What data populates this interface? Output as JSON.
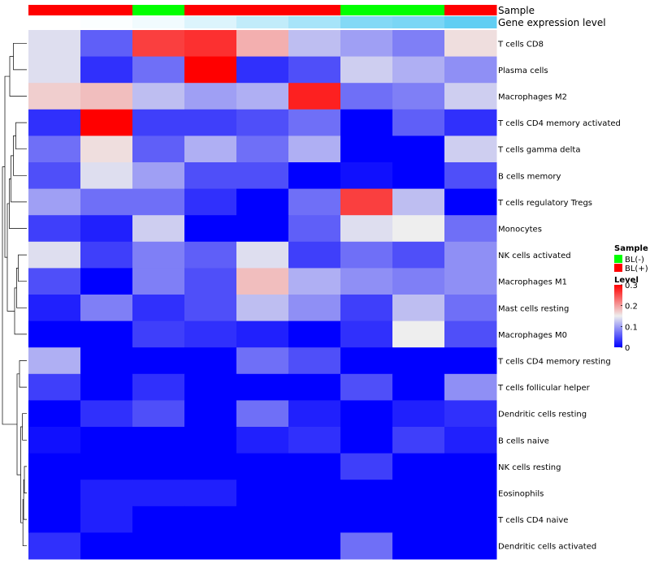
{
  "chart_data": {
    "type": "heatmap",
    "annotation_titles": {
      "sample": "Sample",
      "expression": "Gene expression level"
    },
    "sample_annotation": [
      "BL(+)",
      "BL(+)",
      "BL(-)",
      "BL(+)",
      "BL(+)",
      "BL(+)",
      "BL(-)",
      "BL(-)",
      "BL(+)"
    ],
    "expression_annotation": [
      0.0,
      0.02,
      0.08,
      0.2,
      0.35,
      0.5,
      0.7,
      0.75,
      0.9
    ],
    "rows": [
      "T cells CD8",
      "Plasma cells",
      "Macrophages M2",
      "T cells CD4 memory activated",
      "T cells gamma delta",
      "B cells memory",
      "T cells regulatory  Tregs",
      "Monocytes",
      "NK cells activated",
      "Macrophages M1",
      "Mast cells resting",
      "Macrophages M0",
      "T cells CD4 memory resting",
      "T cells follicular helper",
      "Dendritic cells resting",
      "B cells naive",
      "NK cells resting",
      "Eosinophils",
      "T cells CD4 naive",
      "Dendritic cells activated"
    ],
    "values": [
      [
        0.14,
        0.06,
        0.26,
        0.27,
        0.19,
        0.12,
        0.1,
        0.08,
        0.16
      ],
      [
        0.14,
        0.03,
        0.07,
        0.3,
        0.03,
        0.05,
        0.13,
        0.11,
        0.09
      ],
      [
        0.17,
        0.18,
        0.12,
        0.1,
        0.11,
        0.28,
        0.07,
        0.08,
        0.13
      ],
      [
        0.03,
        0.3,
        0.04,
        0.04,
        0.05,
        0.07,
        0.0,
        0.06,
        0.03
      ],
      [
        0.07,
        0.16,
        0.06,
        0.11,
        0.07,
        0.11,
        0.0,
        0.0,
        0.13
      ],
      [
        0.05,
        0.14,
        0.1,
        0.05,
        0.05,
        0.0,
        0.01,
        0.0,
        0.05
      ],
      [
        0.1,
        0.07,
        0.07,
        0.03,
        0.0,
        0.07,
        0.26,
        0.12,
        0.0
      ],
      [
        0.04,
        0.02,
        0.13,
        0.0,
        0.0,
        0.06,
        0.14,
        0.15,
        0.07
      ],
      [
        0.14,
        0.04,
        0.08,
        0.06,
        0.14,
        0.04,
        0.07,
        0.05,
        0.09
      ],
      [
        0.05,
        0.0,
        0.08,
        0.05,
        0.18,
        0.11,
        0.09,
        0.08,
        0.09
      ],
      [
        0.02,
        0.08,
        0.03,
        0.05,
        0.12,
        0.09,
        0.04,
        0.12,
        0.07
      ],
      [
        0.0,
        0.0,
        0.04,
        0.03,
        0.02,
        0.0,
        0.03,
        0.15,
        0.05
      ],
      [
        0.11,
        0.0,
        0.0,
        0.0,
        0.07,
        0.05,
        0.0,
        0.0,
        0.0
      ],
      [
        0.04,
        0.0,
        0.03,
        0.0,
        0.0,
        0.0,
        0.05,
        0.0,
        0.09
      ],
      [
        0.0,
        0.03,
        0.05,
        0.0,
        0.07,
        0.02,
        0.0,
        0.02,
        0.03
      ],
      [
        0.01,
        0.0,
        0.0,
        0.0,
        0.02,
        0.03,
        0.0,
        0.04,
        0.02
      ],
      [
        0.0,
        0.0,
        0.0,
        0.0,
        0.0,
        0.0,
        0.04,
        0.0,
        0.0
      ],
      [
        0.0,
        0.02,
        0.02,
        0.02,
        0.0,
        0.0,
        0.0,
        0.0,
        0.0
      ],
      [
        0.0,
        0.02,
        0.0,
        0.0,
        0.0,
        0.0,
        0.0,
        0.0,
        0.0
      ],
      [
        0.03,
        0.0,
        0.0,
        0.0,
        0.0,
        0.0,
        0.07,
        0.0,
        0.0
      ]
    ],
    "color_scale": {
      "min": 0,
      "mid": 0.15,
      "max": 0.3,
      "low_color": "#0000ff",
      "mid_color": "#eeeeee",
      "high_color": "#ff0000"
    },
    "legend": {
      "placement": "right",
      "sample_title": "Sample",
      "sample_entries": [
        {
          "label": "BL(-)",
          "color": "#00ff00"
        },
        {
          "label": "BL(+)",
          "color": "#ff0000"
        }
      ],
      "level_title": "Level",
      "level_ticks": [
        0,
        0.1,
        0.2,
        0.3
      ],
      "level_tick_labels": [
        "0",
        "0.1",
        "0.2",
        "0.3"
      ]
    },
    "expression_colors": {
      "low": "#ffffff",
      "high": "#4ec8f2"
    },
    "dendrogram": "rows"
  }
}
